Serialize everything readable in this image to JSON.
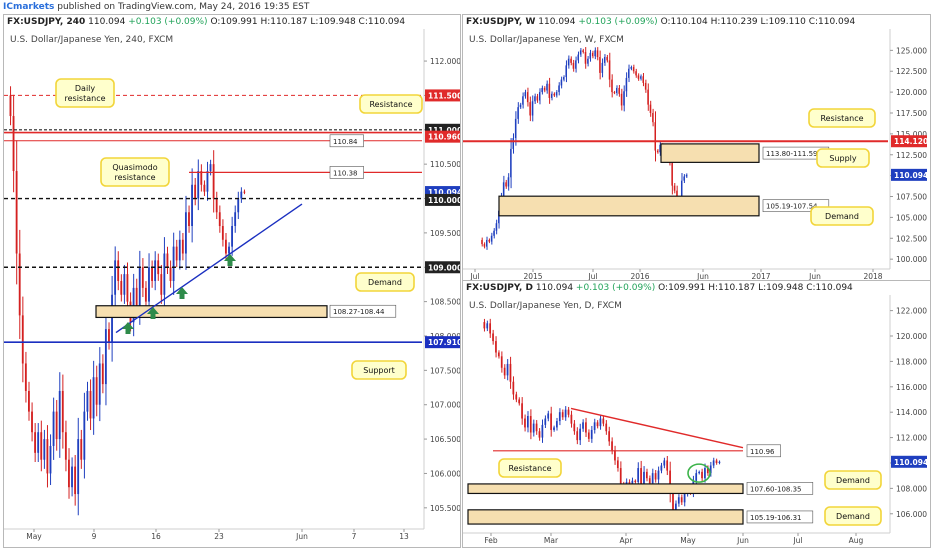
{
  "publisher": {
    "brand": "ICmarkets",
    "text": "published on TradingView.com, May 24, 2016 19:35 EST"
  },
  "colors": {
    "bull": "#1f3fbf",
    "bear": "#d42020",
    "resistance": "#e02a2a",
    "support": "#1a2fc0",
    "zone_fill": "#f6dfb0",
    "callout_fill": "#ffffcc",
    "callout_border": "#f2d53a",
    "arrow": "#2e8b4a"
  },
  "panels": [
    {
      "id": "h4",
      "header": {
        "symbol": "FX:USDJPY, 240",
        "last": "110.094",
        "change": "+0.103 (+0.09%)",
        "o": "O:109.991",
        "h": "H:110.187",
        "l": "L:109.948",
        "c": "C:110.094"
      },
      "watermark": "U.S. Dollar/Japanese Yen, 240, FXCM",
      "x_ticks": [
        "May",
        "9",
        "16",
        "23",
        "Jun",
        "7",
        "13"
      ],
      "y_ticks": [
        "112.000",
        "111.500",
        "111.000",
        "110.500",
        "110.000",
        "109.500",
        "109.000",
        "108.500",
        "108.000",
        "107.500",
        "107.000",
        "106.500",
        "106.000",
        "105.500"
      ],
      "price_labels": [
        "111.500",
        "111.000",
        "110.960",
        "110.094",
        "110.000",
        "109.000",
        "107.910"
      ],
      "box_labels": [
        "110.84",
        "110.38",
        "108.27-108.44"
      ],
      "callouts": [
        "Daily resistance",
        "Resistance",
        "Quasimodo resistance",
        "Demand",
        "Support"
      ]
    },
    {
      "id": "weekly",
      "header": {
        "symbol": "FX:USDJPY, W",
        "last": "110.094",
        "change": "+0.103 (+0.09%)",
        "o": "O:110.104",
        "h": "H:110.239",
        "l": "L:109.110",
        "c": "C:110.094"
      },
      "watermark": "U.S. Dollar/Japanese Yen, W, FXCM",
      "x_ticks": [
        "Jul",
        "2015",
        "Jul",
        "2016",
        "Jun",
        "2017",
        "Jun",
        "2018"
      ],
      "y_ticks": [
        "125.000",
        "122.500",
        "120.000",
        "117.500",
        "115.000",
        "112.500",
        "110.000",
        "107.500",
        "105.000",
        "102.500",
        "100.000"
      ],
      "price_labels": [
        "114.120",
        "110.094"
      ],
      "box_labels": [
        "113.80-111.59",
        "105.19-107.54"
      ],
      "callouts": [
        "Resistance",
        "Supply",
        "Demand"
      ]
    },
    {
      "id": "daily",
      "header": {
        "symbol": "FX:USDJPY, D",
        "last": "110.094",
        "change": "+0.103 (+0.09%)",
        "o": "O:109.991",
        "h": "H:110.187",
        "l": "L:109.948",
        "c": "C:110.094"
      },
      "watermark": "U.S. Dollar/Japanese Yen, D, FXCM",
      "x_ticks": [
        "Feb",
        "Mar",
        "Apr",
        "May",
        "Jun",
        "Jul",
        "Aug"
      ],
      "y_ticks": [
        "122.000",
        "120.000",
        "118.000",
        "116.000",
        "114.000",
        "112.000",
        "110.000",
        "108.000",
        "106.000"
      ],
      "price_labels": [
        "110.094"
      ],
      "box_labels": [
        "110.96",
        "107.60-108.35",
        "105.19-106.31"
      ],
      "callouts": [
        "Resistance",
        "Demand",
        "Demand"
      ]
    }
  ],
  "chart_data": [
    {
      "type": "candlestick",
      "title": "U.S. Dollar/Japanese Yen, 240, FXCM",
      "ylim": [
        105.25,
        112.35
      ],
      "x_labels": [
        "May",
        "9",
        "16",
        "23",
        "Jun",
        "7",
        "13"
      ],
      "closes": [
        111.2,
        110.4,
        109.2,
        108.3,
        107.6,
        107.2,
        106.9,
        106.6,
        106.3,
        106.6,
        106.2,
        106.5,
        106.0,
        106.4,
        106.9,
        106.5,
        107.2,
        106.6,
        106.2,
        105.8,
        106.1,
        105.7,
        106.5,
        106.2,
        106.9,
        107.2,
        106.8,
        107.4,
        107.0,
        107.6,
        107.3,
        108.1,
        107.9,
        108.6,
        109.1,
        108.8,
        108.6,
        108.9,
        108.5,
        108.2,
        108.7,
        108.4,
        109.0,
        108.7,
        108.5,
        109.0,
        108.8,
        109.1,
        108.9,
        108.6,
        109.2,
        109.0,
        108.8,
        109.3,
        109.1,
        109.4,
        109.2,
        109.8,
        109.6,
        110.2,
        110.0,
        110.4,
        110.2,
        110.1,
        110.4,
        110.5,
        110.0,
        109.8,
        109.6,
        109.4,
        109.2,
        109.3,
        109.6,
        109.8,
        110.0,
        110.1,
        110.094
      ],
      "levels": {
        "daily_resistance": [
          110.96,
          111.0
        ],
        "resistance": 111.5,
        "level_110_84": 110.84,
        "quasimodo_resistance": 110.38,
        "level_110": 110.0,
        "level_109": 109.0,
        "demand": [
          108.27,
          108.44
        ],
        "support": 107.91
      },
      "series": [
        {
          "name": "USDJPY 240",
          "last": 110.094
        }
      ]
    },
    {
      "type": "candlestick",
      "title": "U.S. Dollar/Japanese Yen, W, FXCM",
      "ylim": [
        99.3,
        126.6
      ],
      "x_labels": [
        "Jul",
        "2015",
        "Jul",
        "2016",
        "Jun",
        "2017",
        "Jun",
        "2018"
      ],
      "closes": [
        101.8,
        101.5,
        102.3,
        102.1,
        102.8,
        103.4,
        104.3,
        105.8,
        107.3,
        109.2,
        108.7,
        109.8,
        113.2,
        114.5,
        116.8,
        118.2,
        118.5,
        119.5,
        120.0,
        118.8,
        117.2,
        118.9,
        119.5,
        119.0,
        120.0,
        120.5,
        120.2,
        121.0,
        119.3,
        119.8,
        119.6,
        120.0,
        120.8,
        121.5,
        121.8,
        123.2,
        124.0,
        123.5,
        122.8,
        123.8,
        124.5,
        125.0,
        124.8,
        123.4,
        124.0,
        124.7,
        124.3,
        125.0,
        124.2,
        122.3,
        123.5,
        124.2,
        123.8,
        121.5,
        120.0,
        119.9,
        120.5,
        119.8,
        118.4,
        120.1,
        121.7,
        122.8,
        123.0,
        122.5,
        122.0,
        121.6,
        121.9,
        121.1,
        120.3,
        118.5,
        117.5,
        116.4,
        113.0,
        112.8,
        113.7,
        113.5,
        113.0,
        112.0,
        111.5,
        108.8,
        108.2,
        106.8,
        107.1,
        109.4,
        109.9,
        110.094
      ],
      "levels": {
        "resistance": 114.12,
        "supply": [
          111.59,
          113.8
        ],
        "demand": [
          105.19,
          107.54
        ]
      },
      "series": [
        {
          "name": "USDJPY W",
          "last": 110.094
        }
      ]
    },
    {
      "type": "candlestick",
      "title": "U.S. Dollar/Japanese Yen, D, FXCM",
      "ylim": [
        104.8,
        122.6
      ],
      "x_labels": [
        "Feb",
        "Mar",
        "Apr",
        "May",
        "Jun",
        "Jul",
        "Aug"
      ],
      "closes": [
        120.6,
        121.0,
        120.2,
        119.6,
        118.7,
        118.4,
        117.5,
        116.9,
        117.8,
        116.4,
        115.4,
        115.0,
        114.7,
        113.5,
        112.8,
        113.7,
        112.4,
        113.1,
        112.5,
        112.0,
        113.0,
        113.5,
        113.9,
        112.6,
        112.8,
        113.3,
        114.0,
        113.6,
        114.2,
        113.8,
        113.1,
        112.5,
        111.8,
        112.7,
        113.2,
        112.4,
        111.9,
        112.6,
        113.2,
        112.9,
        113.5,
        113.1,
        112.5,
        111.7,
        111.0,
        110.2,
        109.6,
        108.3,
        107.9,
        108.5,
        108.1,
        108.6,
        108.5,
        109.6,
        108.2,
        109.3,
        108.8,
        108.4,
        109.2,
        108.7,
        109.4,
        109.8,
        110.2,
        109.4,
        107.6,
        106.3,
        106.8,
        107.3,
        106.9,
        107.6,
        108.1,
        107.7,
        108.6,
        109.2,
        109.3,
        108.8,
        109.6,
        109.2,
        109.8,
        110.2,
        110.0,
        110.094
      ],
      "levels": {
        "resistance": 110.96,
        "demand_upper": [
          107.6,
          108.35
        ],
        "demand_lower": [
          105.19,
          106.31
        ]
      },
      "series": [
        {
          "name": "USDJPY D",
          "last": 110.094
        }
      ]
    }
  ]
}
